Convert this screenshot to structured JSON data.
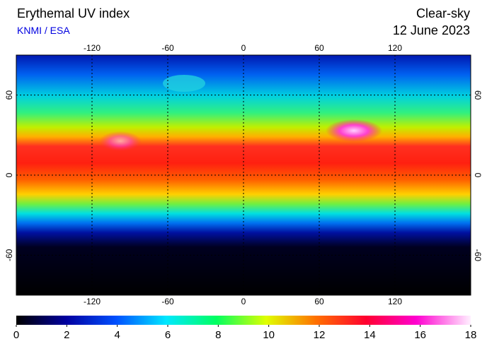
{
  "title": "Erythemal UV index",
  "subtitle": "KNMI / ESA",
  "condition": "Clear-sky",
  "date": "12 June 2023",
  "map": {
    "lonlim": [
      -180,
      180
    ],
    "latlim": [
      -90,
      90
    ],
    "lon_ticks": [
      -120,
      -60,
      0,
      60,
      120
    ],
    "lat_ticks": [
      60,
      0,
      -60
    ]
  },
  "colorbar": {
    "lim": [
      0,
      18
    ],
    "ticks": [
      0,
      2,
      4,
      6,
      8,
      10,
      12,
      14,
      16,
      18
    ]
  }
}
